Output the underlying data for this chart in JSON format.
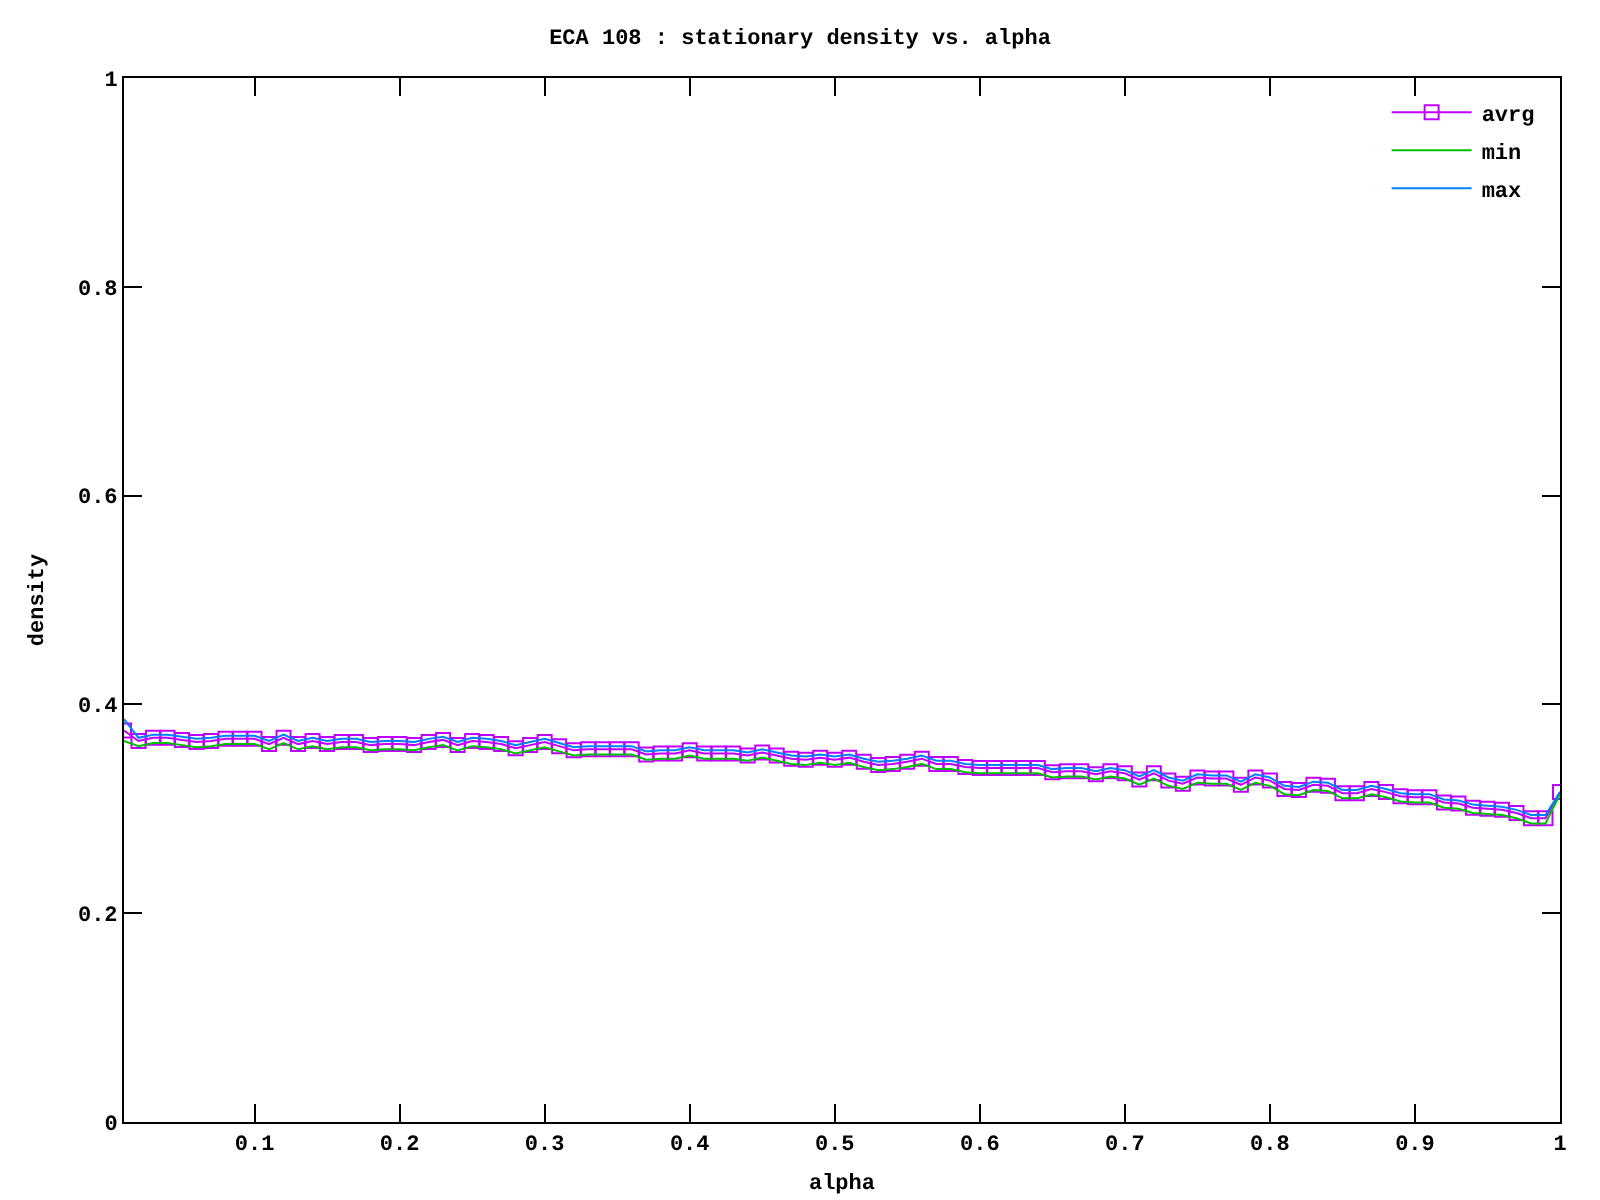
{
  "chart_data": {
    "type": "line",
    "title": "ECA 108 : stationary density vs. alpha",
    "xlabel": "alpha",
    "ylabel": "density",
    "x": [
      0.01,
      0.02,
      0.03,
      0.04,
      0.05,
      0.06,
      0.07,
      0.08,
      0.09,
      0.1,
      0.11,
      0.12,
      0.13,
      0.14,
      0.15,
      0.16,
      0.17,
      0.18,
      0.19,
      0.2,
      0.21,
      0.22,
      0.23,
      0.24,
      0.25,
      0.26,
      0.27,
      0.28,
      0.29,
      0.3,
      0.31,
      0.32,
      0.33,
      0.34,
      0.35,
      0.36,
      0.37,
      0.38,
      0.39,
      0.4,
      0.41,
      0.42,
      0.43,
      0.44,
      0.45,
      0.46,
      0.47,
      0.48,
      0.49,
      0.5,
      0.51,
      0.52,
      0.53,
      0.54,
      0.55,
      0.56,
      0.57,
      0.58,
      0.59,
      0.6,
      0.61,
      0.62,
      0.63,
      0.64,
      0.65,
      0.66,
      0.67,
      0.68,
      0.69,
      0.7,
      0.71,
      0.72,
      0.73,
      0.74,
      0.75,
      0.76,
      0.77,
      0.78,
      0.79,
      0.8,
      0.81,
      0.82,
      0.83,
      0.84,
      0.85,
      0.86,
      0.87,
      0.88,
      0.89,
      0.9,
      0.91,
      0.92,
      0.93,
      0.94,
      0.95,
      0.96,
      0.97,
      0.98,
      0.99,
      1.0
    ],
    "series": [
      {
        "name": "avrg",
        "marker": "square",
        "color": "#c000ff",
        "values": [
          0.375,
          0.365,
          0.368,
          0.368,
          0.366,
          0.364,
          0.365,
          0.367,
          0.367,
          0.367,
          0.362,
          0.368,
          0.362,
          0.365,
          0.362,
          0.364,
          0.364,
          0.361,
          0.362,
          0.362,
          0.361,
          0.364,
          0.366,
          0.361,
          0.365,
          0.364,
          0.362,
          0.358,
          0.361,
          0.364,
          0.36,
          0.356,
          0.357,
          0.357,
          0.357,
          0.357,
          0.352,
          0.353,
          0.353,
          0.356,
          0.353,
          0.353,
          0.353,
          0.351,
          0.354,
          0.351,
          0.348,
          0.347,
          0.349,
          0.347,
          0.349,
          0.345,
          0.342,
          0.343,
          0.345,
          0.348,
          0.343,
          0.343,
          0.34,
          0.339,
          0.339,
          0.339,
          0.339,
          0.339,
          0.335,
          0.336,
          0.336,
          0.333,
          0.336,
          0.334,
          0.328,
          0.334,
          0.327,
          0.324,
          0.33,
          0.329,
          0.329,
          0.323,
          0.33,
          0.327,
          0.319,
          0.318,
          0.323,
          0.322,
          0.315,
          0.315,
          0.319,
          0.316,
          0.312,
          0.311,
          0.311,
          0.306,
          0.305,
          0.301,
          0.3,
          0.299,
          0.296,
          0.291,
          0.291,
          0.316
        ]
      },
      {
        "name": "min",
        "marker": "none",
        "color": "#00c000",
        "values": [
          0.365,
          0.36,
          0.363,
          0.363,
          0.361,
          0.359,
          0.36,
          0.362,
          0.362,
          0.362,
          0.357,
          0.363,
          0.357,
          0.36,
          0.357,
          0.359,
          0.359,
          0.356,
          0.357,
          0.357,
          0.356,
          0.359,
          0.361,
          0.356,
          0.36,
          0.359,
          0.357,
          0.353,
          0.356,
          0.359,
          0.355,
          0.351,
          0.352,
          0.352,
          0.352,
          0.352,
          0.347,
          0.348,
          0.348,
          0.351,
          0.348,
          0.348,
          0.348,
          0.346,
          0.349,
          0.346,
          0.343,
          0.342,
          0.344,
          0.342,
          0.344,
          0.34,
          0.337,
          0.338,
          0.34,
          0.343,
          0.338,
          0.338,
          0.335,
          0.334,
          0.334,
          0.334,
          0.334,
          0.334,
          0.33,
          0.331,
          0.331,
          0.328,
          0.331,
          0.329,
          0.323,
          0.329,
          0.322,
          0.319,
          0.325,
          0.324,
          0.324,
          0.318,
          0.325,
          0.322,
          0.314,
          0.313,
          0.318,
          0.317,
          0.31,
          0.31,
          0.314,
          0.311,
          0.307,
          0.306,
          0.306,
          0.301,
          0.3,
          0.296,
          0.295,
          0.294,
          0.291,
          0.286,
          0.286,
          0.314
        ]
      },
      {
        "name": "max",
        "marker": "none",
        "color": "#0080ff",
        "values": [
          0.386,
          0.368,
          0.371,
          0.371,
          0.369,
          0.367,
          0.368,
          0.37,
          0.37,
          0.37,
          0.365,
          0.371,
          0.365,
          0.368,
          0.365,
          0.367,
          0.367,
          0.364,
          0.365,
          0.365,
          0.364,
          0.367,
          0.369,
          0.364,
          0.368,
          0.367,
          0.365,
          0.361,
          0.364,
          0.367,
          0.363,
          0.359,
          0.36,
          0.36,
          0.36,
          0.36,
          0.355,
          0.356,
          0.356,
          0.359,
          0.356,
          0.356,
          0.356,
          0.354,
          0.357,
          0.354,
          0.351,
          0.35,
          0.352,
          0.35,
          0.352,
          0.348,
          0.345,
          0.346,
          0.348,
          0.351,
          0.346,
          0.346,
          0.343,
          0.342,
          0.342,
          0.342,
          0.342,
          0.342,
          0.338,
          0.339,
          0.339,
          0.336,
          0.339,
          0.337,
          0.331,
          0.337,
          0.33,
          0.327,
          0.333,
          0.332,
          0.332,
          0.326,
          0.333,
          0.33,
          0.322,
          0.321,
          0.326,
          0.325,
          0.318,
          0.318,
          0.322,
          0.319,
          0.315,
          0.314,
          0.314,
          0.309,
          0.308,
          0.304,
          0.303,
          0.302,
          0.299,
          0.294,
          0.294,
          0.316
        ]
      }
    ],
    "xlim": [
      0.01,
      1
    ],
    "ylim": [
      0,
      1
    ],
    "xticks": [
      0.1,
      0.2,
      0.3,
      0.4,
      0.5,
      0.6,
      0.7,
      0.8,
      0.9,
      1
    ],
    "yticks": [
      0,
      0.2,
      0.4,
      0.6,
      0.8,
      1
    ],
    "legend": "top right"
  }
}
